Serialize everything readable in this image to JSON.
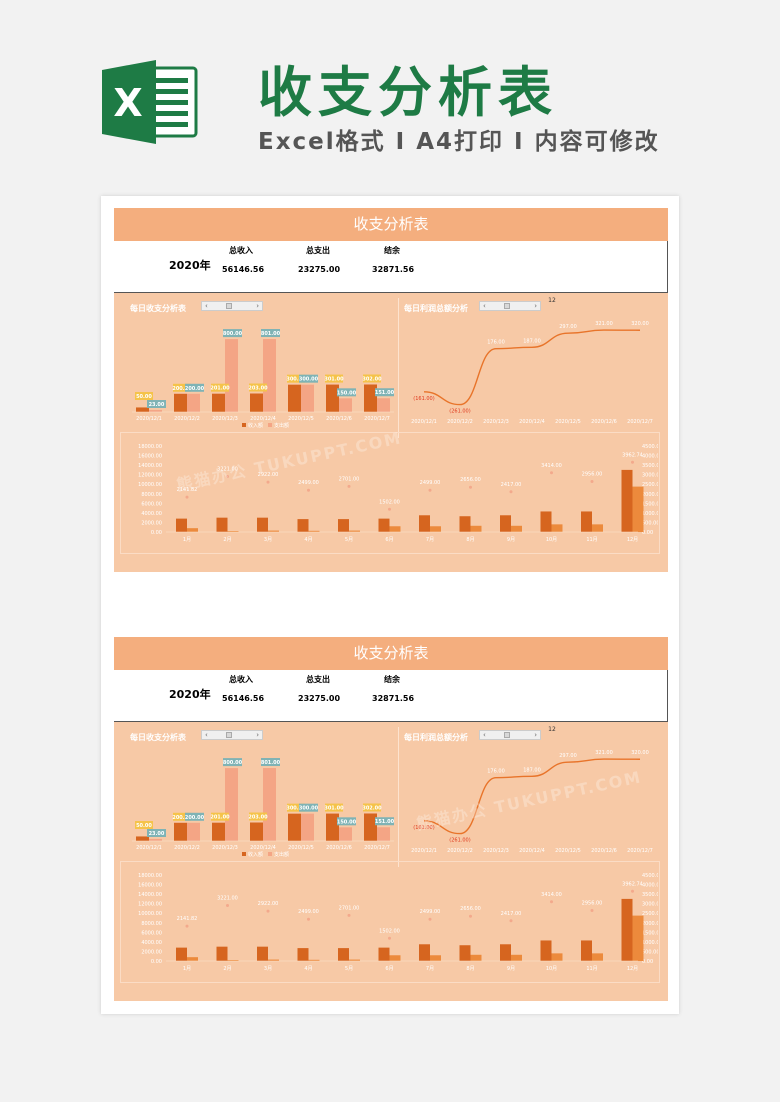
{
  "header": {
    "title": "收支分析表",
    "subtitle": "Excel格式 Ⅰ A4打印 Ⅰ 内容可修改",
    "logo_letter": "X"
  },
  "colors": {
    "brand_green": "#1e7b45",
    "sheet_bg": "#f7c9a6",
    "title_bar": "#f4ae7e",
    "income": "#d6651f",
    "expense": "#f4a585",
    "yellow_label": "#f5c34a",
    "teal_label": "#7fb3b5",
    "line": "#e8742a",
    "loss_text": "#e03a1e"
  },
  "sheet": {
    "title": "收支分析表",
    "year": "2020年",
    "income_label": "总收入",
    "expense_label": "总支出",
    "balance_label": "结余",
    "income_value": "56146.56",
    "expense_value": "23275.00",
    "balance_value": "32871.56"
  },
  "daily_chart": {
    "title": "每日收支分析表",
    "legend_income": "收入额",
    "legend_expense": "支出额",
    "chart_data": {
      "type": "bar",
      "categories": [
        "2020/12/1",
        "2020/12/2",
        "2020/12/3",
        "2020/12/4",
        "2020/12/5",
        "2020/12/6",
        "2020/12/7"
      ],
      "series": [
        {
          "name": "收入额",
          "values": [
            50,
            200,
            201,
            203,
            300,
            301,
            302
          ]
        },
        {
          "name": "支出额",
          "values": [
            23,
            200,
            800,
            801,
            300,
            150,
            151
          ]
        }
      ],
      "income_labels": [
        "50.00",
        "200.00",
        "201.00",
        "203.00",
        "300.00",
        "301.00",
        "302.00"
      ],
      "expense_labels": [
        "23.00",
        "200.00",
        "800.00",
        "801.00",
        "300.00",
        "150.00",
        "151.00"
      ],
      "ylim": [
        0,
        900
      ]
    }
  },
  "profit_chart": {
    "title": "每日利润总额分析",
    "top_label": "12",
    "chart_data": {
      "type": "line",
      "categories": [
        "2020/12/1",
        "2020/12/2",
        "2020/12/3",
        "2020/12/4",
        "2020/12/5",
        "2020/12/6",
        "2020/12/7"
      ],
      "values": [
        -161,
        -261,
        176,
        187,
        297,
        321,
        320
      ],
      "labels": [
        "(161.00)",
        "(261.00)",
        "176.00",
        "187.00",
        "297.00",
        "321.00",
        "320.00"
      ],
      "ylim": [
        -350,
        400
      ]
    }
  },
  "monthly_chart": {
    "chart_data": {
      "type": "bar",
      "categories": [
        "1月",
        "2月",
        "3月",
        "4月",
        "5月",
        "6月",
        "7月",
        "8月",
        "9月",
        "10月",
        "11月",
        "12月"
      ],
      "series": [
        {
          "name": "收入额",
          "values": [
            2800,
            3000,
            3000,
            2700,
            2700,
            2800,
            3500,
            3300,
            3500,
            4300,
            4300,
            13000
          ]
        },
        {
          "name": "支出额",
          "values": [
            800,
            200,
            300,
            250,
            300,
            1200,
            1200,
            1300,
            1300,
            1600,
            1600,
            9500
          ]
        }
      ],
      "point_values": [
        2141.82,
        3221.0,
        2922.0,
        2499.0,
        2701.0,
        1502.0,
        2499.0,
        2656.0,
        2417.0,
        3414.0,
        2956.0,
        3962.74
      ],
      "point_labels": [
        "2141.82",
        "3221.00",
        "2922.00",
        "2499.00",
        "2701.00",
        "1502.00",
        "2499.00",
        "2656.00",
        "2417.00",
        "3414.00",
        "2956.00",
        "3962.74"
      ],
      "left_axis": [
        "18000.00",
        "16000.00",
        "14000.00",
        "12000.00",
        "10000.00",
        "8000.00",
        "6000.00",
        "4000.00",
        "2000.00",
        "0.00"
      ],
      "right_axis": [
        "4500.00",
        "4000.00",
        "3500.00",
        "3000.00",
        "2500.00",
        "2000.00",
        "1500.00",
        "1000.00",
        "500.00",
        "0.00"
      ],
      "ylim_left": [
        0,
        18000
      ],
      "ylim_right": [
        0,
        4500
      ]
    }
  },
  "watermark": "熊猫办公 TUKUPPT.COM"
}
